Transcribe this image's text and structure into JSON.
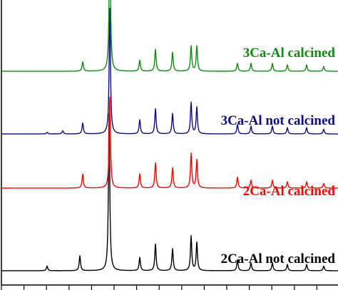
{
  "chart_data": {
    "type": "line",
    "title": "",
    "xlabel": "",
    "ylabel": "",
    "grid": false,
    "x_ticks_labeled": false,
    "series": [
      {
        "name": "2Ca-Al not calcined",
        "color": "#000000",
        "baseline": 0.05,
        "amp": 0.55,
        "peaks": [
          [
            66,
            0.03
          ],
          [
            112,
            0.095
          ],
          [
            153,
            1.0
          ],
          [
            196,
            0.085
          ],
          [
            218,
            0.17
          ],
          [
            242,
            0.14
          ],
          [
            268,
            0.22
          ],
          [
            276,
            0.18
          ],
          [
            333,
            0.07
          ],
          [
            352,
            0.05
          ],
          [
            382,
            0.05
          ],
          [
            403,
            0.04
          ],
          [
            430,
            0.04
          ],
          [
            454,
            0.03
          ]
        ]
      },
      {
        "name": "2Ca-Al calcined",
        "color": "#ff0000",
        "baseline": 0.34,
        "amp": 0.55,
        "peaks": [
          [
            116,
            0.09
          ],
          [
            154,
            0.58
          ],
          [
            196,
            0.09
          ],
          [
            218,
            0.16
          ],
          [
            242,
            0.13
          ],
          [
            268,
            0.22
          ],
          [
            276,
            0.18
          ],
          [
            333,
            0.07
          ],
          [
            352,
            0.05
          ],
          [
            382,
            0.05
          ],
          [
            403,
            0.04
          ],
          [
            430,
            0.04
          ],
          [
            454,
            0.03
          ]
        ]
      },
      {
        "name": "3Ca-Al not calcined",
        "color": "#0d0d80",
        "baseline": 0.53,
        "amp": 0.55,
        "peaks": [
          [
            66,
            0.01
          ],
          [
            88,
            0.02
          ],
          [
            116,
            0.07
          ],
          [
            154,
            0.8
          ],
          [
            196,
            0.09
          ],
          [
            218,
            0.16
          ],
          [
            242,
            0.13
          ],
          [
            268,
            0.2
          ],
          [
            276,
            0.17
          ],
          [
            333,
            0.06
          ],
          [
            352,
            0.05
          ],
          [
            382,
            0.05
          ],
          [
            403,
            0.04
          ],
          [
            430,
            0.04
          ],
          [
            454,
            0.03
          ]
        ]
      },
      {
        "name": "3Ca-Al calcined",
        "color": "#118811",
        "baseline": 0.75,
        "amp": 0.55,
        "peaks": [
          [
            116,
            0.06
          ],
          [
            154,
            0.93
          ],
          [
            196,
            0.07
          ],
          [
            218,
            0.14
          ],
          [
            242,
            0.12
          ],
          [
            268,
            0.16
          ],
          [
            276,
            0.16
          ],
          [
            333,
            0.05
          ],
          [
            352,
            0.05
          ],
          [
            382,
            0.05
          ],
          [
            403,
            0.04
          ],
          [
            430,
            0.04
          ],
          [
            454,
            0.03
          ]
        ]
      }
    ]
  }
}
